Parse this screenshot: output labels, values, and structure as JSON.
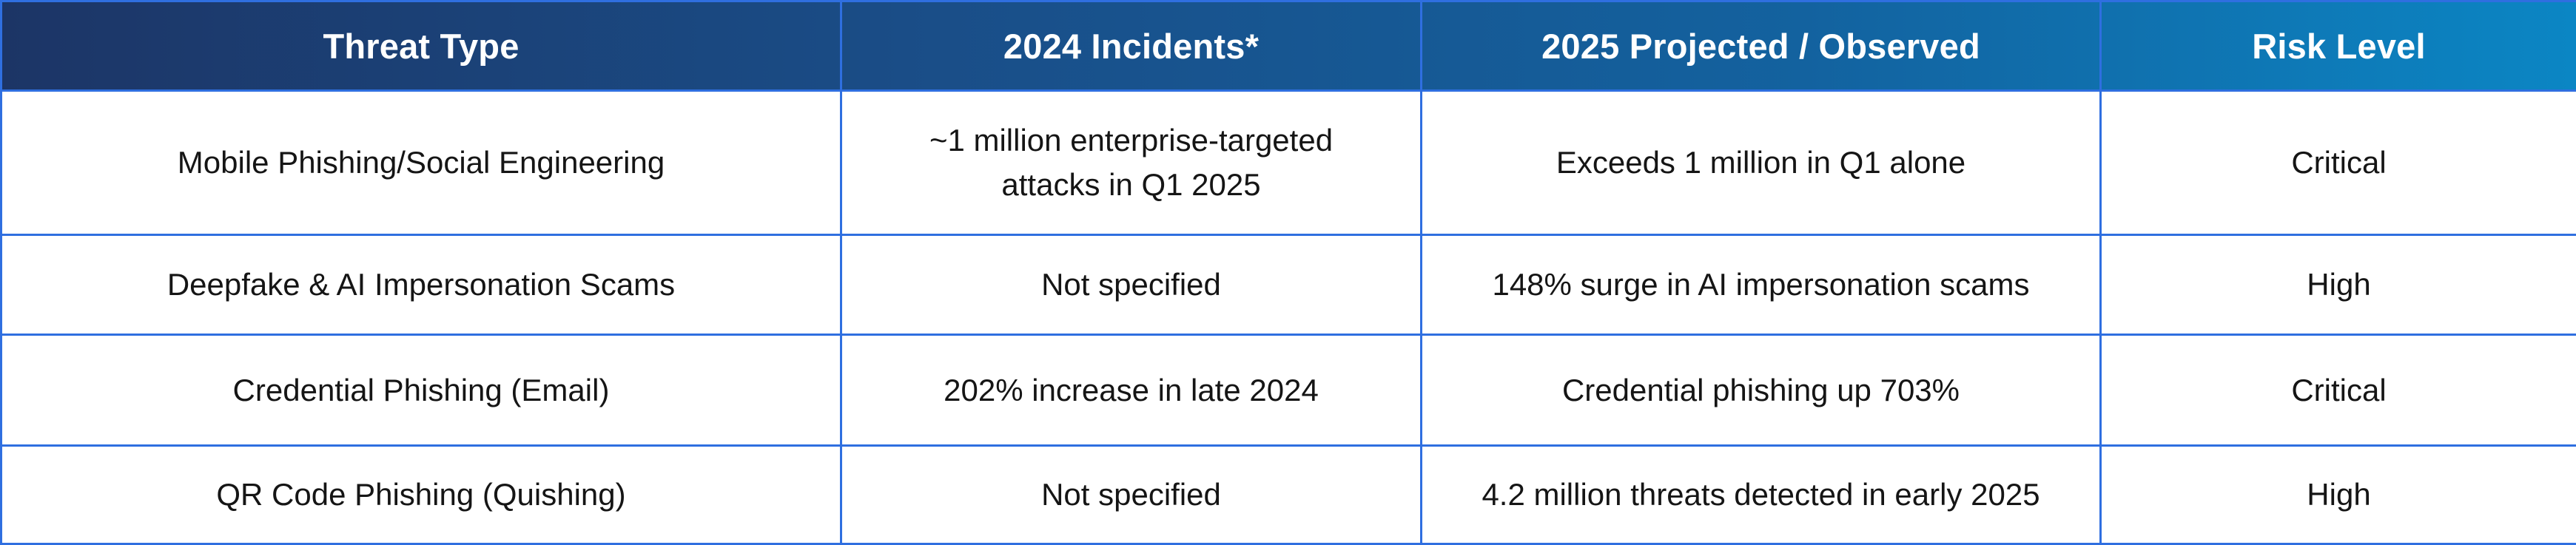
{
  "table": {
    "headers": [
      "Threat Type",
      "2024 Incidents*",
      "2025 Projected / Observed",
      "Risk Level"
    ],
    "rows": [
      [
        "Mobile Phishing/Social Engineering",
        "~1 million enterprise-targeted attacks in Q1 2025",
        "Exceeds 1 million in Q1 alone",
        "Critical"
      ],
      [
        "Deepfake & AI Impersonation Scams",
        "Not specified",
        "148% surge in AI impersonation scams",
        "High"
      ],
      [
        "Credential Phishing (Email)",
        "202% increase in late 2024",
        "Credential phishing up 703%",
        "Critical"
      ],
      [
        "QR Code Phishing (Quishing)",
        "Not specified",
        "4.2 million threats detected in early 2025",
        "High"
      ]
    ]
  },
  "colors": {
    "header_gradient_start": "#1c3566",
    "header_gradient_end": "#0b86c4",
    "grid_border": "#2f6fe0",
    "header_text": "#ffffff",
    "body_text": "#151515"
  }
}
